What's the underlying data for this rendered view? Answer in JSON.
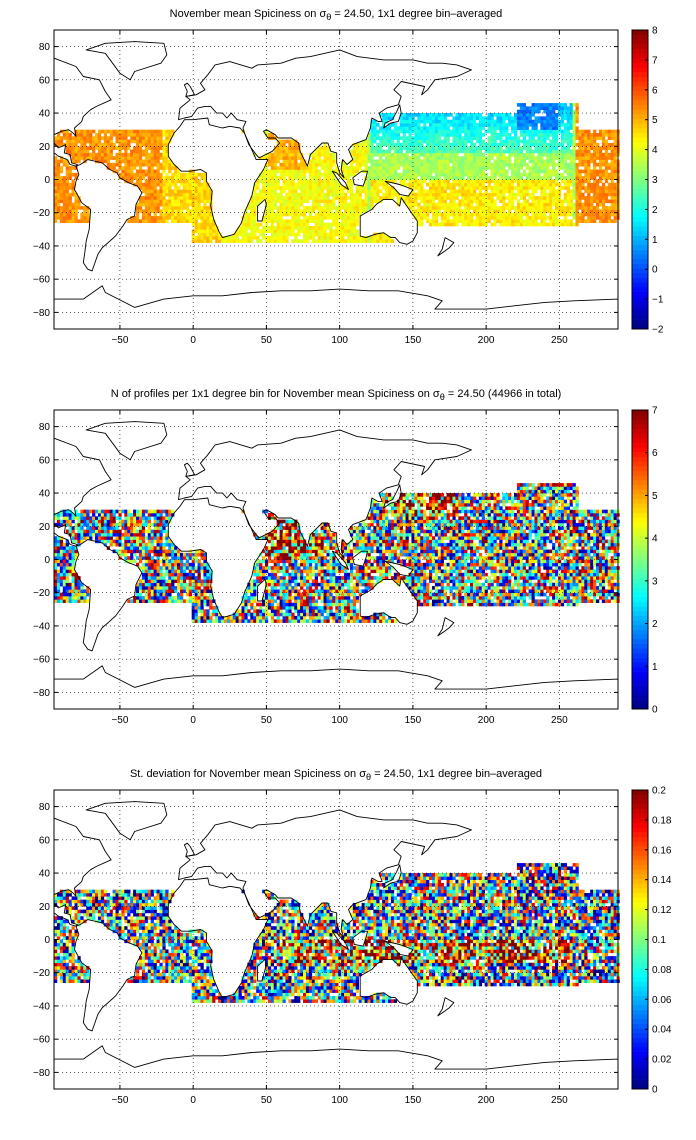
{
  "chart_data": [
    {
      "type": "heatmap",
      "title_prefix": "November mean Spiciness on ",
      "title_symbol": "σ",
      "title_sub": "θ",
      "title_suffix": " = 24.50, 1x1 degree bin–averaged",
      "x_ticks": [
        -50,
        0,
        50,
        100,
        150,
        200,
        250
      ],
      "y_ticks": [
        80,
        60,
        40,
        20,
        0,
        -20,
        -40,
        -60,
        -80
      ],
      "xlim": [
        -95,
        290
      ],
      "ylim": [
        -90,
        90
      ],
      "grid": true,
      "colormap": "jet",
      "colorbar_range": [
        -2,
        8
      ],
      "colorbar_ticks": [
        8,
        7,
        6,
        5,
        4,
        3,
        2,
        1,
        0,
        -1,
        -2
      ],
      "field": "spiciness"
    },
    {
      "type": "heatmap",
      "title_prefix": "N of profiles per 1x1 degree bin for November mean Spiciness on ",
      "title_symbol": "σ",
      "title_sub": "θ",
      "title_suffix": " = 24.50 (44966 in total)",
      "x_ticks": [
        -50,
        0,
        50,
        100,
        150,
        200,
        250
      ],
      "y_ticks": [
        80,
        60,
        40,
        20,
        0,
        -20,
        -40,
        -60,
        -80
      ],
      "xlim": [
        -95,
        290
      ],
      "ylim": [
        -90,
        90
      ],
      "grid": true,
      "colormap": "jet",
      "colorbar_range": [
        0,
        7
      ],
      "colorbar_ticks": [
        7,
        6,
        5,
        4,
        3,
        2,
        1,
        0
      ],
      "field": "count"
    },
    {
      "type": "heatmap",
      "title_prefix": "St. deviation for November mean Spiciness on ",
      "title_symbol": "σ",
      "title_sub": "θ",
      "title_suffix": " = 24.50, 1x1 degree bin–averaged",
      "x_ticks": [
        -50,
        0,
        50,
        100,
        150,
        200,
        250
      ],
      "y_ticks": [
        80,
        60,
        40,
        20,
        0,
        -20,
        -40,
        -60,
        -80
      ],
      "xlim": [
        -95,
        290
      ],
      "ylim": [
        -90,
        90
      ],
      "grid": true,
      "colormap": "jet",
      "colorbar_range": [
        0,
        0.2
      ],
      "colorbar_ticks": [
        0.2,
        0.18,
        0.16,
        0.14,
        0.12,
        0.1,
        0.08,
        0.06,
        0.04,
        0.02,
        0
      ],
      "field": "stdev"
    }
  ]
}
